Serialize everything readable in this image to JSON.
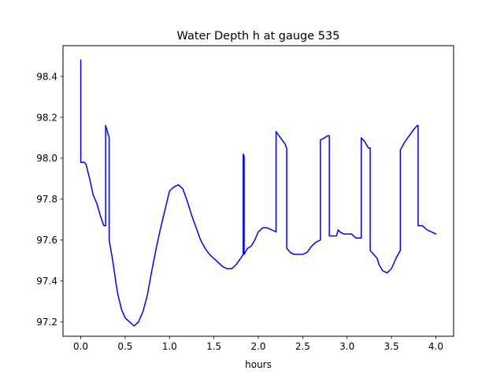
{
  "chart_data": {
    "type": "line",
    "title": "Water Depth h at gauge 535",
    "xlabel": "hours",
    "ylabel": "",
    "xlim": [
      -0.2,
      4.2
    ],
    "ylim": [
      97.13,
      98.55
    ],
    "xticks": [
      0.0,
      0.5,
      1.0,
      1.5,
      2.0,
      2.5,
      3.0,
      3.5,
      4.0
    ],
    "xtick_labels": [
      "0.0",
      "0.5",
      "1.0",
      "1.5",
      "2.0",
      "2.5",
      "3.0",
      "3.5",
      "4.0"
    ],
    "yticks": [
      97.2,
      97.4,
      97.6,
      97.8,
      98.0,
      98.2,
      98.4
    ],
    "ytick_labels": [
      "97.2",
      "97.4",
      "97.6",
      "97.8",
      "98.0",
      "98.2",
      "98.4"
    ],
    "grid": false,
    "line_color": "#0000ff",
    "series": [
      {
        "x": [
          0.0,
          0.0,
          0.04,
          0.06,
          0.1,
          0.14,
          0.18,
          0.22,
          0.26,
          0.28,
          0.28,
          0.32,
          0.32,
          0.36,
          0.4,
          0.42,
          0.46,
          0.5,
          0.55,
          0.6,
          0.65,
          0.7,
          0.75,
          0.8,
          0.85,
          0.9,
          0.95,
          1.0,
          1.05,
          1.1,
          1.15,
          1.2,
          1.25,
          1.3,
          1.35,
          1.4,
          1.45,
          1.5,
          1.55,
          1.6,
          1.65,
          1.7,
          1.75,
          1.8,
          1.83,
          1.83,
          1.84,
          1.84,
          1.88,
          1.92,
          1.96,
          2.0,
          2.05,
          2.1,
          2.15,
          2.2,
          2.2,
          2.25,
          2.3,
          2.32,
          2.32,
          2.36,
          2.4,
          2.45,
          2.5,
          2.55,
          2.6,
          2.65,
          2.7,
          2.7,
          2.75,
          2.78,
          2.8,
          2.8,
          2.85,
          2.88,
          2.9,
          2.92,
          2.96,
          3.0,
          3.05,
          3.1,
          3.16,
          3.16,
          3.2,
          3.24,
          3.26,
          3.26,
          3.3,
          3.34,
          3.36,
          3.4,
          3.45,
          3.5,
          3.55,
          3.6,
          3.6,
          3.65,
          3.7,
          3.75,
          3.79,
          3.8,
          3.8,
          3.85,
          3.9,
          3.95,
          4.0
        ],
        "y": [
          98.48,
          97.98,
          97.98,
          97.97,
          97.9,
          97.82,
          97.78,
          97.72,
          97.67,
          97.67,
          98.16,
          98.1,
          97.6,
          97.5,
          97.38,
          97.33,
          97.26,
          97.22,
          97.2,
          97.18,
          97.2,
          97.25,
          97.33,
          97.45,
          97.56,
          97.66,
          97.75,
          97.84,
          97.86,
          97.87,
          97.85,
          97.79,
          97.72,
          97.66,
          97.6,
          97.56,
          97.53,
          97.51,
          97.49,
          97.47,
          97.46,
          97.46,
          97.48,
          97.51,
          97.53,
          98.02,
          98.01,
          97.53,
          97.56,
          97.57,
          97.6,
          97.64,
          97.66,
          97.66,
          97.65,
          97.64,
          98.13,
          98.1,
          98.07,
          98.05,
          97.56,
          97.54,
          97.53,
          97.53,
          97.53,
          97.54,
          97.57,
          97.59,
          97.6,
          98.09,
          98.1,
          98.11,
          98.11,
          97.62,
          97.62,
          97.62,
          97.65,
          97.64,
          97.63,
          97.63,
          97.63,
          97.61,
          97.61,
          98.1,
          98.08,
          98.05,
          98.05,
          97.55,
          97.53,
          97.51,
          97.48,
          97.45,
          97.44,
          97.46,
          97.51,
          97.55,
          98.04,
          98.08,
          98.11,
          98.14,
          98.16,
          98.16,
          97.67,
          97.67,
          97.65,
          97.64,
          97.63
        ]
      }
    ]
  }
}
